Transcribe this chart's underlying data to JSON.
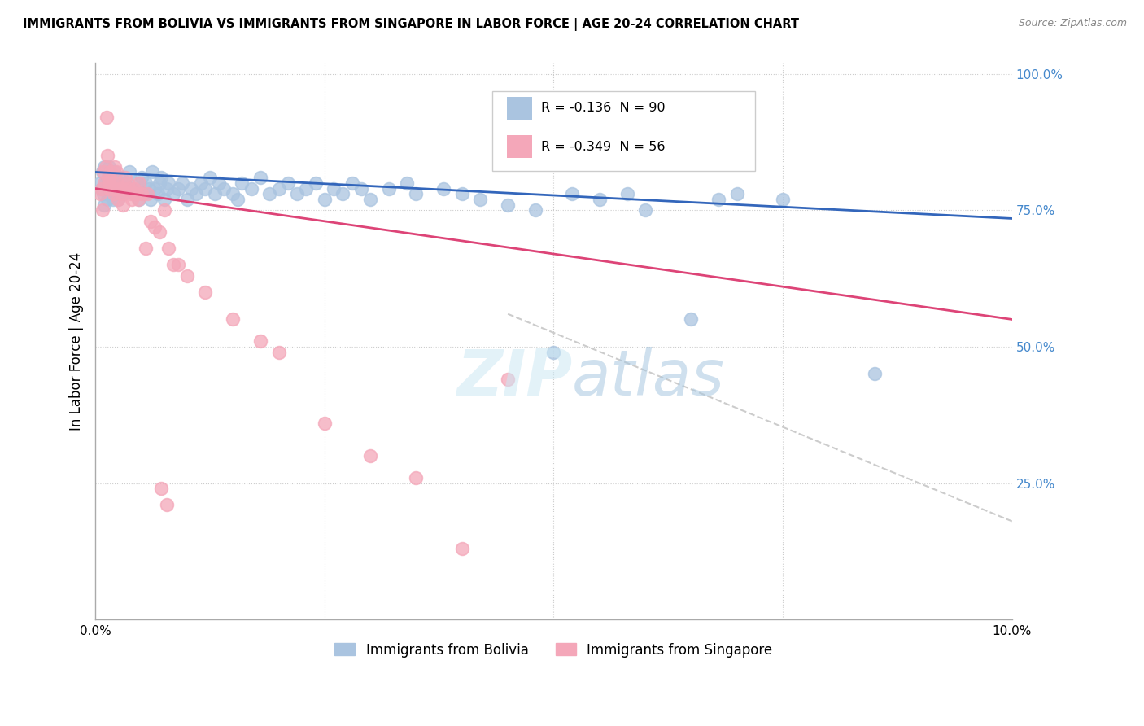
{
  "title": "IMMIGRANTS FROM BOLIVIA VS IMMIGRANTS FROM SINGAPORE IN LABOR FORCE | AGE 20-24 CORRELATION CHART",
  "source": "Source: ZipAtlas.com",
  "ylabel": "In Labor Force | Age 20-24",
  "legend_bolivia": "Immigrants from Bolivia",
  "legend_singapore": "Immigrants from Singapore",
  "R_bolivia": -0.136,
  "N_bolivia": 90,
  "R_singapore": -0.349,
  "N_singapore": 56,
  "color_bolivia": "#aac4e0",
  "color_singapore": "#f4a7b9",
  "color_trendline_bolivia": "#3366bb",
  "color_trendline_singapore": "#dd4477",
  "color_trendline_dashed": "#cccccc",
  "xmin": 0.0,
  "xmax": 10.0,
  "ymin": 0.0,
  "ymax": 100.0,
  "bolivia_trendline": [
    82.0,
    73.5
  ],
  "singapore_trendline": [
    79.0,
    55.0
  ],
  "dashed_line": [
    [
      4.5,
      10.0
    ],
    [
      56.0,
      18.0
    ]
  ],
  "bolivia_x": [
    0.05,
    0.07,
    0.08,
    0.09,
    0.1,
    0.1,
    0.11,
    0.12,
    0.13,
    0.14,
    0.15,
    0.16,
    0.17,
    0.18,
    0.19,
    0.2,
    0.21,
    0.22,
    0.23,
    0.25,
    0.26,
    0.28,
    0.3,
    0.32,
    0.35,
    0.37,
    0.4,
    0.42,
    0.45,
    0.48,
    0.5,
    0.52,
    0.55,
    0.58,
    0.6,
    0.62,
    0.65,
    0.68,
    0.7,
    0.72,
    0.75,
    0.78,
    0.8,
    0.85,
    0.9,
    0.95,
    1.0,
    1.05,
    1.1,
    1.15,
    1.2,
    1.25,
    1.3,
    1.35,
    1.4,
    1.5,
    1.55,
    1.6,
    1.7,
    1.8,
    1.9,
    2.0,
    2.1,
    2.2,
    2.3,
    2.4,
    2.5,
    2.6,
    2.7,
    2.8,
    2.9,
    3.0,
    3.2,
    3.4,
    3.5,
    3.8,
    4.0,
    4.2,
    4.5,
    4.8,
    5.0,
    5.2,
    5.5,
    5.8,
    6.0,
    6.5,
    6.8,
    7.0,
    7.5,
    8.5
  ],
  "bolivia_y": [
    80,
    79,
    82,
    78,
    76,
    83,
    80,
    79,
    77,
    81,
    83,
    78,
    80,
    79,
    77,
    82,
    79,
    78,
    80,
    77,
    79,
    81,
    78,
    80,
    79,
    82,
    79,
    78,
    80,
    77,
    81,
    78,
    80,
    79,
    77,
    82,
    79,
    78,
    80,
    81,
    77,
    79,
    80,
    78,
    79,
    80,
    77,
    79,
    78,
    80,
    79,
    81,
    78,
    80,
    79,
    78,
    77,
    80,
    79,
    81,
    78,
    79,
    80,
    78,
    79,
    80,
    77,
    79,
    78,
    80,
    79,
    77,
    79,
    80,
    78,
    79,
    78,
    77,
    76,
    75,
    49,
    78,
    77,
    78,
    75,
    55,
    77,
    78,
    77,
    45
  ],
  "singapore_x": [
    0.05,
    0.07,
    0.08,
    0.09,
    0.1,
    0.11,
    0.12,
    0.13,
    0.14,
    0.15,
    0.16,
    0.17,
    0.18,
    0.19,
    0.2,
    0.21,
    0.22,
    0.23,
    0.24,
    0.25,
    0.27,
    0.28,
    0.3,
    0.32,
    0.35,
    0.38,
    0.4,
    0.42,
    0.45,
    0.48,
    0.5,
    0.55,
    0.6,
    0.65,
    0.7,
    0.75,
    0.8,
    0.85,
    0.9,
    1.0,
    1.2,
    1.5,
    1.8,
    2.0,
    2.5,
    3.0,
    3.5,
    4.0,
    4.5,
    0.33,
    0.37,
    0.43,
    0.47,
    0.57,
    0.72,
    0.78
  ],
  "singapore_y": [
    78,
    79,
    75,
    82,
    80,
    83,
    92,
    85,
    81,
    80,
    79,
    82,
    79,
    80,
    78,
    83,
    79,
    82,
    80,
    77,
    79,
    78,
    76,
    79,
    80,
    78,
    77,
    79,
    78,
    80,
    78,
    68,
    73,
    72,
    71,
    75,
    68,
    65,
    65,
    63,
    60,
    55,
    51,
    49,
    36,
    30,
    26,
    13,
    44,
    81,
    79,
    78,
    77,
    78,
    24,
    21
  ]
}
